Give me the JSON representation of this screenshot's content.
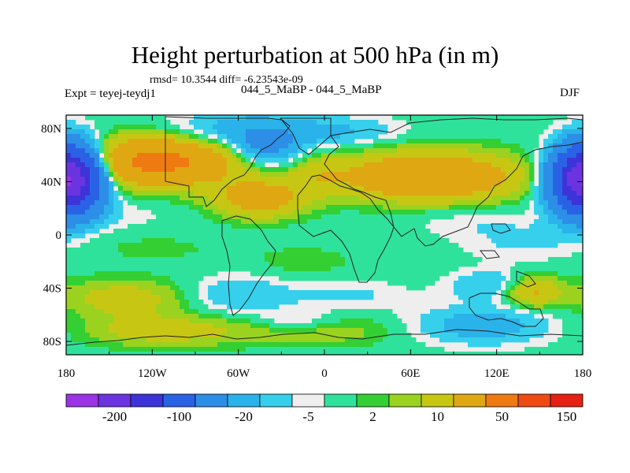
{
  "chart_data": {
    "type": "heatmap",
    "title": "Height perturbation at 500 hPa (in m)",
    "subtitle_left": "rmsd= 10.3544 diff= -6.23543e-09",
    "left_label": "Expt = teyej-teydj1",
    "center_label": "044_5_MaBP - 044_5_MaBP",
    "right_label": "DJF",
    "x_axis": {
      "range": [
        -180,
        180
      ],
      "ticks": [
        {
          "value": -180,
          "label": "180"
        },
        {
          "value": -120,
          "label": "120W"
        },
        {
          "value": -60,
          "label": "60W"
        },
        {
          "value": 0,
          "label": "0"
        },
        {
          "value": 60,
          "label": "60E"
        },
        {
          "value": 120,
          "label": "120E"
        },
        {
          "value": 180,
          "label": "180"
        }
      ]
    },
    "y_axis": {
      "range": [
        -90,
        90
      ],
      "ticks": [
        {
          "value": 80,
          "label": "80N"
        },
        {
          "value": 40,
          "label": "40N"
        },
        {
          "value": 0,
          "label": "0"
        },
        {
          "value": -40,
          "label": "40S"
        },
        {
          "value": -80,
          "label": "80S"
        }
      ]
    },
    "colorbar": {
      "colors": [
        "#9a33e6",
        "#6b34e0",
        "#3c34d9",
        "#2a62e6",
        "#2c8ee6",
        "#2ab2ea",
        "#36d0ec",
        "#eeeeee",
        "#2fe29b",
        "#33cf33",
        "#9ad21f",
        "#c7c713",
        "#dfa812",
        "#f07a12",
        "#ee4a12",
        "#e62012"
      ],
      "labels": [
        {
          "after_index": 1,
          "text": "-200"
        },
        {
          "after_index": 3,
          "text": "-100"
        },
        {
          "after_index": 5,
          "text": "-20"
        },
        {
          "after_index": 7,
          "text": "-5"
        },
        {
          "after_index": 9,
          "text": "2"
        },
        {
          "after_index": 11,
          "text": "10"
        },
        {
          "after_index": 13,
          "text": "50"
        },
        {
          "after_index": 15,
          "text": "150"
        }
      ]
    },
    "anomalies": [
      {
        "lon": -175,
        "lat": 42,
        "amp": -110,
        "slon": 14,
        "slat": 16
      },
      {
        "lon": -115,
        "lat": 55,
        "amp": 60,
        "slon": 34,
        "slat": 12
      },
      {
        "lon": -60,
        "lat": 78,
        "amp": -15,
        "slon": 35,
        "slat": 10
      },
      {
        "lon": -40,
        "lat": 65,
        "amp": -22,
        "slon": 16,
        "slat": 10
      },
      {
        "lon": -45,
        "lat": 28,
        "amp": 30,
        "slon": 22,
        "slat": 10
      },
      {
        "lon": -5,
        "lat": 45,
        "amp": 10,
        "slon": 14,
        "slat": 10
      },
      {
        "lon": 72,
        "lat": 44,
        "amp": 45,
        "slon": 42,
        "slat": 12
      },
      {
        "lon": 10,
        "lat": 78,
        "amp": -10,
        "slon": 30,
        "slat": 8
      },
      {
        "lon": 178,
        "lat": 42,
        "amp": -110,
        "slon": 14,
        "slat": 16
      },
      {
        "lon": -150,
        "lat": 15,
        "amp": -4,
        "slon": 30,
        "slat": 8
      },
      {
        "lon": 100,
        "lat": 10,
        "amp": -4,
        "slon": 30,
        "slat": 8
      },
      {
        "lon": 140,
        "lat": -5,
        "amp": -6,
        "slon": 30,
        "slat": 10
      },
      {
        "lon": -120,
        "lat": -10,
        "amp": 3,
        "slon": 35,
        "slat": 8
      },
      {
        "lon": -15,
        "lat": -20,
        "amp": 4,
        "slon": 25,
        "slat": 8
      },
      {
        "lon": -140,
        "lat": -48,
        "amp": 15,
        "slon": 30,
        "slat": 10
      },
      {
        "lon": -60,
        "lat": -45,
        "amp": -10,
        "slon": 25,
        "slat": 10
      },
      {
        "lon": 15,
        "lat": -45,
        "amp": -6,
        "slon": 30,
        "slat": 8
      },
      {
        "lon": 120,
        "lat": -38,
        "amp": -12,
        "slon": 22,
        "slat": 8
      },
      {
        "lon": 145,
        "lat": -42,
        "amp": 25,
        "slon": 14,
        "slat": 8
      },
      {
        "lon": -110,
        "lat": -72,
        "amp": 15,
        "slon": 40,
        "slat": 8
      },
      {
        "lon": 0,
        "lat": -72,
        "amp": 8,
        "slon": 40,
        "slat": 8
      },
      {
        "lon": 110,
        "lat": -68,
        "amp": -15,
        "slon": 35,
        "slat": 10
      },
      {
        "lon": -20,
        "lat": -65,
        "amp": -8,
        "slon": 20,
        "slat": 6
      }
    ]
  }
}
